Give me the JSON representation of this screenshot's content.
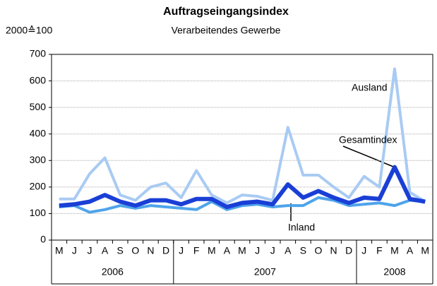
{
  "chart_data": {
    "type": "line",
    "title": "Auftragseingangsindex",
    "subtitle": "Verarbeitendes Gewerbe",
    "y_unit": "2000≙100",
    "category_groups": [
      {
        "label": "2006",
        "categories": [
          "M",
          "J",
          "J",
          "A",
          "S",
          "O",
          "N",
          "D"
        ]
      },
      {
        "label": "2007",
        "categories": [
          "J",
          "F",
          "M",
          "A",
          "M",
          "J",
          "J",
          "A",
          "S",
          "O",
          "N",
          "D"
        ]
      },
      {
        "label": "2008",
        "categories": [
          "J",
          "F",
          "M",
          "A",
          "M"
        ]
      }
    ],
    "series": [
      {
        "name": "Ausland",
        "color": "#a9cbf3",
        "width": 4,
        "values": [
          155,
          155,
          250,
          310,
          170,
          150,
          200,
          215,
          160,
          262,
          170,
          140,
          170,
          165,
          150,
          425,
          245,
          245,
          200,
          160,
          240,
          200,
          645,
          180,
          145
        ]
      },
      {
        "name": "Inland",
        "color": "#4ea4ea",
        "width": 4,
        "values": [
          125,
          130,
          105,
          115,
          130,
          120,
          130,
          125,
          120,
          115,
          145,
          115,
          130,
          135,
          125,
          130,
          130,
          160,
          150,
          130,
          135,
          140,
          130,
          150,
          145
        ]
      },
      {
        "name": "Gesamtindex",
        "color": "#1a3fd6",
        "width": 6,
        "values": [
          130,
          135,
          145,
          170,
          145,
          130,
          150,
          150,
          135,
          155,
          155,
          125,
          140,
          145,
          135,
          210,
          160,
          185,
          160,
          140,
          160,
          155,
          275,
          155,
          145
        ]
      }
    ],
    "ylim": [
      0,
      700
    ],
    "yticks": [
      0,
      100,
      200,
      300,
      400,
      500,
      600,
      700
    ],
    "grid": true
  }
}
